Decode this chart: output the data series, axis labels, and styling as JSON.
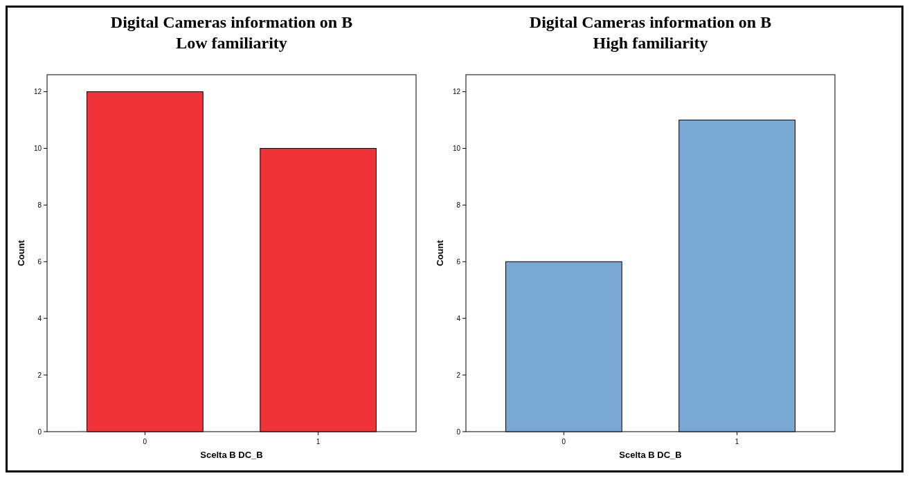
{
  "chart_data": [
    {
      "type": "bar",
      "title": "Digital Cameras information on B",
      "subtitle": "Low familiarity",
      "xlabel": "Scelta B DC_B",
      "ylabel": "Count",
      "categories": [
        "0",
        "1"
      ],
      "values": [
        12,
        10
      ],
      "color": "#f03239",
      "ylim": [
        0,
        12.6
      ],
      "yticks": [
        0,
        2,
        4,
        6,
        8,
        10,
        12
      ],
      "grid": false
    },
    {
      "type": "bar",
      "title": "Digital Cameras information on B",
      "subtitle": "High familiarity",
      "xlabel": "Scelta B DC_B",
      "ylabel": "Count",
      "categories": [
        "0",
        "1"
      ],
      "values": [
        6,
        11
      ],
      "color": "#7aa8d5",
      "ylim": [
        0,
        12.6
      ],
      "yticks": [
        0,
        2,
        4,
        6,
        8,
        10,
        12
      ],
      "grid": false
    }
  ]
}
